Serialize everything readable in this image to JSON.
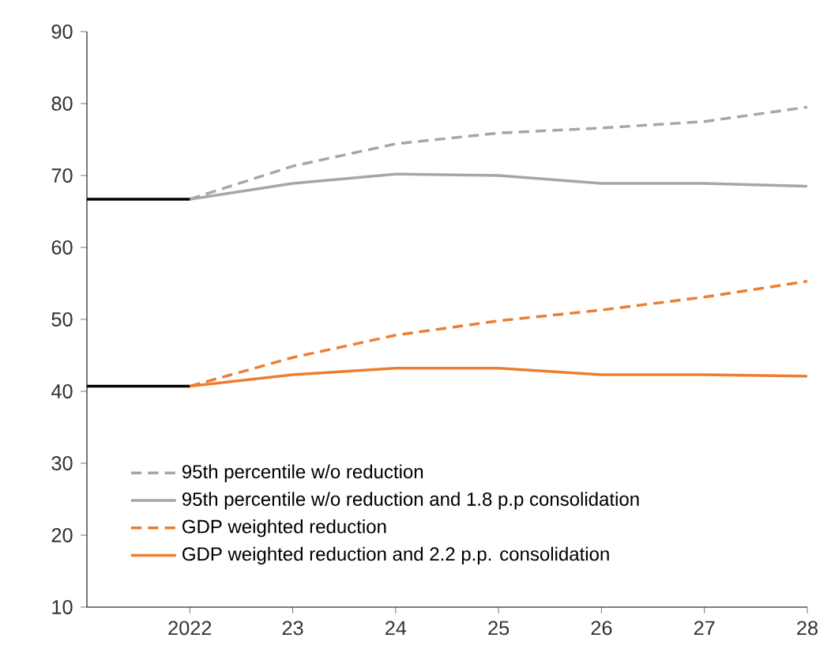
{
  "chart_data": {
    "type": "line",
    "xlim": [
      2021,
      2028
    ],
    "ylim": [
      10,
      90
    ],
    "xticks": [
      {
        "value": 2022,
        "label": "2022"
      },
      {
        "value": 2023,
        "label": "23"
      },
      {
        "value": 2024,
        "label": "24"
      },
      {
        "value": 2025,
        "label": "25"
      },
      {
        "value": 2026,
        "label": "26"
      },
      {
        "value": 2027,
        "label": "27"
      },
      {
        "value": 2028,
        "label": "28"
      }
    ],
    "yticks": [
      10,
      20,
      30,
      40,
      50,
      60,
      70,
      80,
      90
    ],
    "grid": false,
    "legend": "bottom",
    "marker": "none",
    "series": [
      {
        "name": "95th percentile w/o reduction",
        "color": "#a6a6a6",
        "line_style": "dashed",
        "x": [
          2022,
          2023,
          2024,
          2025,
          2026,
          2027,
          2028
        ],
        "values": [
          66.7,
          71.3,
          74.4,
          75.9,
          76.6,
          77.5,
          79.5
        ]
      },
      {
        "name": "95th percentile w/o reduction and 1.8 p.p consolidation",
        "color": "#a6a6a6",
        "line_style": "solid",
        "x": [
          2022,
          2023,
          2024,
          2025,
          2026,
          2027,
          2028
        ],
        "values": [
          66.7,
          68.9,
          70.2,
          70.0,
          68.9,
          68.9,
          68.5
        ]
      },
      {
        "name": "GDP weighted reduction",
        "color": "#ed7d31",
        "line_style": "dashed",
        "x": [
          2022,
          2023,
          2024,
          2025,
          2026,
          2027,
          2028
        ],
        "values": [
          40.7,
          44.7,
          47.8,
          49.8,
          51.3,
          53.1,
          55.3
        ]
      },
      {
        "name": "GDP weighted reduction and 2.2 p.p. consolidation",
        "color": "#ed7d31",
        "line_style": "solid",
        "x": [
          2022,
          2023,
          2024,
          2025,
          2026,
          2027,
          2028
        ],
        "values": [
          40.7,
          42.3,
          43.2,
          43.2,
          42.3,
          42.3,
          42.1
        ]
      },
      {
        "color": "#000000",
        "line_style": "solid",
        "x": [
          2021,
          2022
        ],
        "values": [
          66.7,
          66.7
        ]
      },
      {
        "color": "#000000",
        "line_style": "solid",
        "x": [
          2021,
          2022
        ],
        "values": [
          40.7,
          40.7
        ]
      }
    ]
  }
}
